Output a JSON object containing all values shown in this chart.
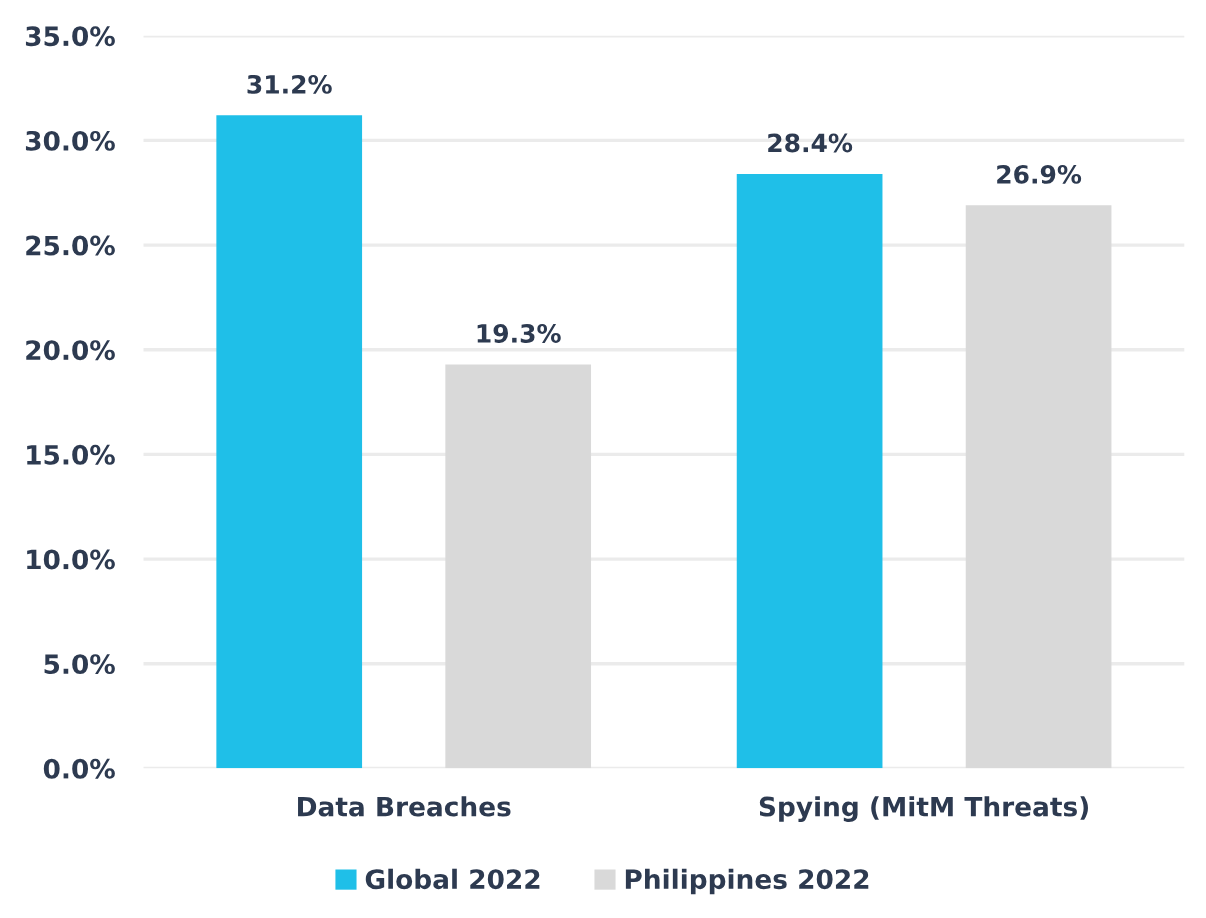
{
  "chart_data": {
    "type": "bar",
    "categories": [
      "Data Breaches",
      "Spying (MitM Threats)"
    ],
    "series": [
      {
        "name": "Global 2022",
        "color": "#1fbfe8",
        "values": [
          31.2,
          28.4
        ],
        "value_labels": [
          "31.2%",
          "28.4%"
        ]
      },
      {
        "name": "Philippines 2022",
        "color": "#d9d9d9",
        "values": [
          19.3,
          26.9
        ],
        "value_labels": [
          "19.3%",
          "26.9%"
        ]
      }
    ],
    "ylim": [
      0,
      35
    ],
    "yticks": [
      {
        "value": 0,
        "label": "0.0%"
      },
      {
        "value": 5,
        "label": "5.0%"
      },
      {
        "value": 10,
        "label": "10.0%"
      },
      {
        "value": 15,
        "label": "15.0%"
      },
      {
        "value": 20,
        "label": "20.0%"
      },
      {
        "value": 25,
        "label": "25.0%"
      },
      {
        "value": 30,
        "label": "30.0%"
      },
      {
        "value": 35,
        "label": "35.0%"
      }
    ],
    "grid": "y",
    "legend": "bottom"
  }
}
